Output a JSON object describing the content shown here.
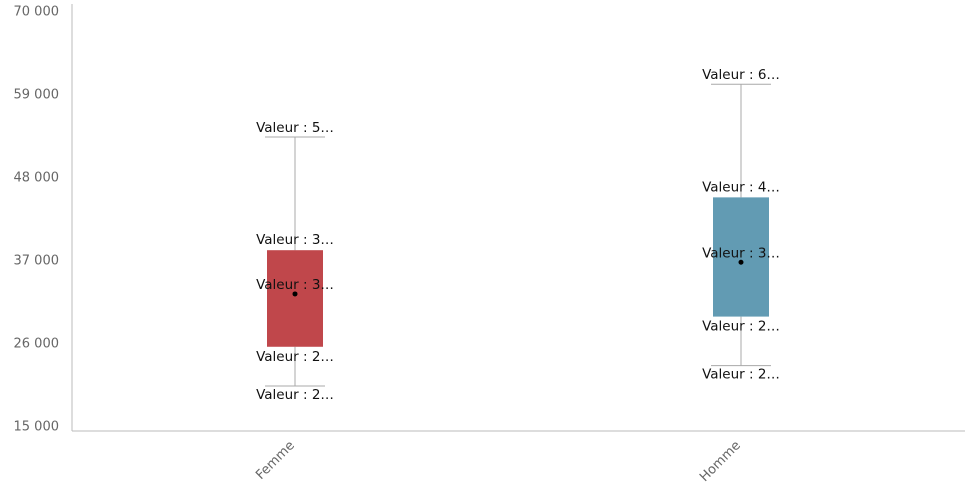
{
  "chart_data": {
    "type": "boxplot",
    "title": "",
    "xlabel": "",
    "ylabel": "",
    "ylim": [
      15000,
      70000
    ],
    "y_ticks": [
      {
        "value": 15000,
        "label": "15 000"
      },
      {
        "value": 26000,
        "label": "26 000"
      },
      {
        "value": 37000,
        "label": "37 000"
      },
      {
        "value": 48000,
        "label": "48 000"
      },
      {
        "value": 59000,
        "label": "59 000"
      },
      {
        "value": 70000,
        "label": "70 000"
      }
    ],
    "categories": [
      "Femme",
      "Homme"
    ],
    "boxes": [
      {
        "category": "Femme",
        "color": "#c0474b",
        "min": 20300,
        "q1": 25500,
        "median": 32500,
        "q3": 38300,
        "max": 53300,
        "labels": {
          "max": "Valeur : 5…",
          "q3": "Valeur : 3…",
          "median": "Valeur : 3…",
          "q1": "Valeur : 2…",
          "min": "Valeur : 2…"
        }
      },
      {
        "category": "Homme",
        "color": "#629bb3",
        "min": 23000,
        "q1": 29500,
        "median": 36700,
        "q3": 45300,
        "max": 60300,
        "labels": {
          "max": "Valeur : 6…",
          "q3": "Valeur : 4…",
          "median": "Valeur : 3…",
          "q1": "Valeur : 2…",
          "min": "Valeur : 2…"
        }
      }
    ],
    "grid": false,
    "legend": "none"
  }
}
